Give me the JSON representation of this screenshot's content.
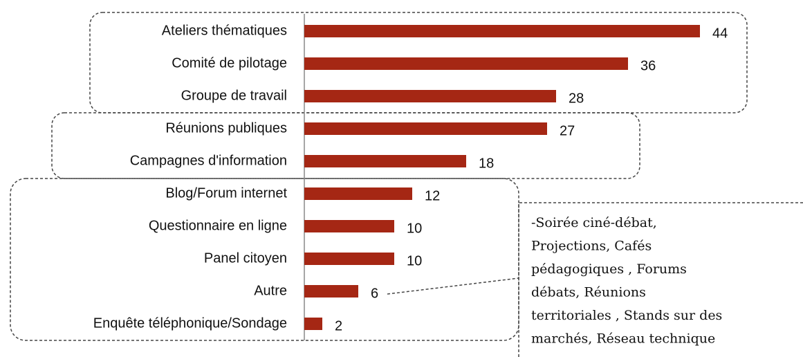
{
  "chart_data": {
    "type": "barh",
    "categories": [
      "Ateliers thématiques",
      "Comité de pilotage",
      "Groupe de travail",
      "Réunions publiques",
      "Campagnes d'information",
      "Blog/Forum  internet",
      "Questionnaire en ligne",
      "Panel citoyen",
      "Autre",
      "Enquête téléphonique/Sondage"
    ],
    "values": [
      44,
      36,
      28,
      27,
      18,
      12,
      10,
      10,
      6,
      2
    ],
    "color": "#a52714",
    "annotation": [
      "-Soirée ciné-débat,",
      "Projections,  Cafés",
      "pédagogiques  , Forums",
      "débats, Réunions",
      "territoriales , Stands sur des",
      "marchés,  Réseau technique"
    ]
  }
}
